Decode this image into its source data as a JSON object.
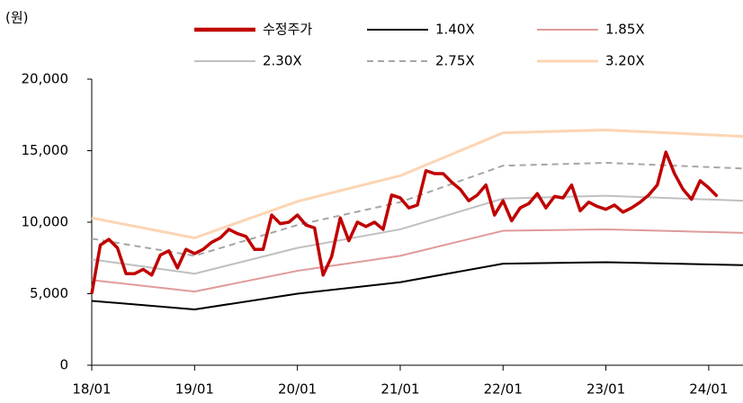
{
  "chart_data": {
    "type": "line",
    "y_label": "(원)",
    "xlim": [
      0,
      76
    ],
    "xticks": [
      {
        "value": 0,
        "label": "18/01"
      },
      {
        "value": 12,
        "label": "19/01"
      },
      {
        "value": 24,
        "label": "20/01"
      },
      {
        "value": 36,
        "label": "21/01"
      },
      {
        "value": 48,
        "label": "22/01"
      },
      {
        "value": 60,
        "label": "23/01"
      },
      {
        "value": 72,
        "label": "24/01"
      }
    ],
    "ylim": [
      0,
      20000
    ],
    "yticks": [
      0,
      {
        "value": 5000,
        "label": "5,000"
      },
      {
        "value": 10000,
        "label": "10,000"
      },
      {
        "value": 15000,
        "label": "15,000"
      },
      {
        "value": 20000,
        "label": "20,000"
      }
    ],
    "grid": false,
    "legend": "top",
    "series": [
      {
        "name": "수정주가",
        "color": "#c00000",
        "width": 3.5,
        "dash": false,
        "x": [
          0,
          1,
          2,
          3,
          4,
          5,
          6,
          7,
          8,
          9,
          10,
          11,
          12,
          13,
          14,
          15,
          16,
          17,
          18,
          19,
          20,
          21,
          22,
          23,
          24,
          25,
          26,
          27,
          28,
          29,
          30,
          31,
          32,
          33,
          34,
          35,
          36,
          37,
          38,
          39,
          40,
          41,
          42,
          43,
          44,
          45,
          46,
          47,
          48,
          49,
          50,
          51,
          52,
          53,
          54,
          55,
          56,
          57,
          58,
          59,
          60,
          61,
          62,
          63,
          64,
          65,
          66,
          67,
          68,
          69,
          70,
          71,
          72,
          73
        ],
        "values": [
          5000,
          8400,
          8800,
          8200,
          6400,
          6400,
          6700,
          6300,
          7700,
          8000,
          6800,
          8100,
          7800,
          8100,
          8600,
          8900,
          9500,
          9200,
          9000,
          8100,
          8100,
          10500,
          9900,
          10000,
          10500,
          9800,
          9600,
          6300,
          7600,
          10300,
          8700,
          10000,
          9700,
          10000,
          9500,
          11900,
          11700,
          11000,
          11200,
          13600,
          13400,
          13400,
          12800,
          12300,
          11500,
          11900,
          12600,
          10500,
          11500,
          10100,
          11000,
          11300,
          12000,
          11000,
          11800,
          11700,
          12600,
          10800,
          11400,
          11100,
          10900,
          11200,
          10700,
          11000,
          11400,
          11900,
          12600,
          14900,
          13400,
          12300,
          11600,
          12900,
          12400,
          11800
        ]
      },
      {
        "name": "1.40X",
        "color": "#000000",
        "width": 2,
        "dash": false,
        "x": [
          0,
          12,
          24,
          36,
          48,
          60,
          76
        ],
        "values": [
          4500,
          3900,
          5000,
          5800,
          7100,
          7200,
          7000
        ]
      },
      {
        "name": "1.85X",
        "color": "#e09a9a",
        "width": 2,
        "dash": false,
        "x": [
          0,
          12,
          24,
          36,
          48,
          60,
          76
        ],
        "values": [
          5950,
          5150,
          6600,
          7650,
          9400,
          9500,
          9250
        ]
      },
      {
        "name": "2.30X",
        "color": "#c0c0c0",
        "width": 2,
        "dash": false,
        "x": [
          0,
          12,
          24,
          36,
          48,
          60,
          76
        ],
        "values": [
          7400,
          6400,
          8200,
          9500,
          11650,
          11850,
          11500
        ]
      },
      {
        "name": "2.75X",
        "color": "#a6a6a6",
        "width": 2,
        "dash": true,
        "x": [
          0,
          12,
          24,
          36,
          48,
          60,
          76
        ],
        "values": [
          8850,
          7650,
          9800,
          11400,
          13950,
          14150,
          13750
        ]
      },
      {
        "name": "3.20X",
        "color": "#fcd5b4",
        "width": 3,
        "dash": false,
        "x": [
          0,
          12,
          24,
          36,
          48,
          60,
          76
        ],
        "values": [
          10300,
          8900,
          11450,
          13250,
          16250,
          16450,
          16000
        ]
      }
    ]
  }
}
